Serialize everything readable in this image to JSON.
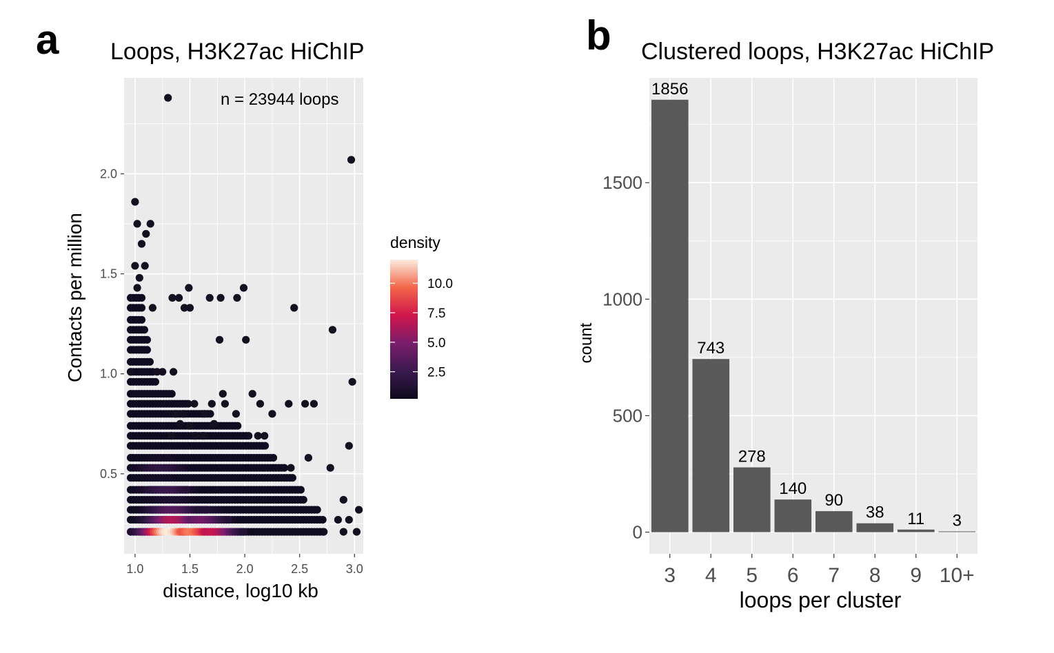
{
  "colors": {
    "panel_bg": "#ebebeb",
    "grid": "#ffffff",
    "point": "#14101f",
    "bar": "#595959",
    "density_low": "#0d0a1e",
    "density_mid": "#d1164b",
    "density_high": "#faebdd"
  },
  "chart_data": [
    {
      "type": "scatter",
      "panel_label": "a",
      "title": "Loops, H3K27ac HiChIP",
      "xlabel": "distance, log10 kb",
      "ylabel": "Contacts per million",
      "annotation": "n =  23944  loops",
      "xlim": [
        0.9,
        3.08
      ],
      "ylim": [
        0.1,
        2.48
      ],
      "x_ticks": [
        1.0,
        1.5,
        2.0,
        2.5,
        3.0
      ],
      "x_tick_labels": [
        "1.0",
        "1.5",
        "2.0",
        "2.5",
        "3.0"
      ],
      "y_ticks": [
        0.5,
        1.0,
        1.5,
        2.0
      ],
      "y_tick_labels": [
        "0.5",
        "1.0",
        "1.5",
        "2.0"
      ],
      "legend_title": "density",
      "legend_ticks": [
        2.5,
        5.0,
        7.5,
        10.0
      ],
      "legend_tick_labels": [
        "2.5",
        "5.0",
        "7.5",
        "10.0"
      ],
      "legend_range": [
        0.2,
        12.0
      ],
      "legend_placement": "right",
      "grid": true,
      "outlier_points": [
        [
          1.3,
          2.38
        ],
        [
          2.97,
          2.07
        ],
        [
          1.0,
          1.86
        ],
        [
          1.02,
          1.75
        ],
        [
          1.14,
          1.75
        ],
        [
          1.1,
          1.7
        ],
        [
          1.06,
          1.65
        ],
        [
          1.0,
          1.54
        ],
        [
          1.09,
          1.54
        ],
        [
          1.04,
          1.48
        ],
        [
          1.02,
          1.43
        ],
        [
          1.49,
          1.43
        ],
        [
          1.99,
          1.43
        ],
        [
          1.34,
          1.38
        ],
        [
          1.4,
          1.38
        ],
        [
          1.68,
          1.38
        ],
        [
          1.78,
          1.38
        ],
        [
          1.93,
          1.38
        ],
        [
          1.16,
          1.33
        ],
        [
          1.45,
          1.33
        ],
        [
          1.5,
          1.33
        ],
        [
          2.45,
          1.33
        ],
        [
          2.8,
          1.22
        ],
        [
          1.77,
          1.17
        ],
        [
          2.01,
          1.17
        ],
        [
          1.2,
          1.01
        ],
        [
          1.25,
          1.01
        ],
        [
          1.35,
          1.01
        ],
        [
          0.96,
          1.01
        ],
        [
          2.98,
          0.96
        ],
        [
          1.8,
          0.9
        ],
        [
          2.07,
          0.9
        ],
        [
          1.54,
          0.85
        ],
        [
          1.7,
          0.85
        ],
        [
          1.82,
          0.85
        ],
        [
          2.14,
          0.85
        ],
        [
          2.4,
          0.85
        ],
        [
          2.55,
          0.85
        ],
        [
          2.63,
          0.85
        ],
        [
          1.37,
          0.8
        ],
        [
          1.44,
          0.8
        ],
        [
          1.63,
          0.8
        ],
        [
          1.92,
          0.8
        ],
        [
          2.25,
          0.8
        ],
        [
          1.41,
          0.75
        ],
        [
          1.72,
          0.75
        ],
        [
          1.5,
          0.74
        ],
        [
          1.33,
          0.69
        ],
        [
          1.55,
          0.69
        ],
        [
          1.62,
          0.69
        ],
        [
          2.12,
          0.69
        ],
        [
          2.18,
          0.69
        ],
        [
          2.95,
          0.64
        ],
        [
          2.78,
          0.53
        ],
        [
          2.58,
          0.58
        ],
        [
          2.42,
          0.53
        ],
        [
          2.9,
          0.37
        ],
        [
          2.95,
          0.27
        ],
        [
          3.04,
          0.32
        ],
        [
          2.85,
          0.27
        ],
        [
          2.9,
          0.21
        ],
        [
          3.02,
          0.21
        ],
        [
          2.72,
          0.21
        ]
      ],
      "row_values": [
        0.21,
        0.27,
        0.32,
        0.37,
        0.42,
        0.48,
        0.53,
        0.58,
        0.64,
        0.69,
        0.74,
        0.8,
        0.85,
        0.9,
        0.96,
        1.01,
        1.06,
        1.12,
        1.17,
        1.22,
        1.27,
        1.33,
        1.38
      ],
      "row_x_max": [
        2.72,
        2.72,
        2.68,
        2.55,
        2.52,
        2.45,
        2.38,
        2.28,
        2.2,
        2.05,
        1.95,
        1.7,
        1.5,
        1.35,
        1.2,
        1.18,
        1.15,
        1.12,
        1.12,
        1.1,
        1.08,
        1.07,
        1.08
      ],
      "density_peaks": [
        {
          "x": 1.3,
          "y": 0.21,
          "d": 12.0
        },
        {
          "x": 1.5,
          "y": 0.21,
          "d": 10.0
        },
        {
          "x": 1.7,
          "y": 0.21,
          "d": 7.0
        },
        {
          "x": 1.35,
          "y": 0.27,
          "d": 6.5
        },
        {
          "x": 1.6,
          "y": 0.27,
          "d": 4.5
        },
        {
          "x": 1.35,
          "y": 0.32,
          "d": 3.5
        },
        {
          "x": 1.3,
          "y": 0.42,
          "d": 2.5
        },
        {
          "x": 1.25,
          "y": 0.53,
          "d": 2.0
        }
      ]
    },
    {
      "type": "bar",
      "panel_label": "b",
      "title": "Clustered loops, H3K27ac HiChIP",
      "xlabel": "loops per cluster",
      "ylabel": "count",
      "categories": [
        "3",
        "4",
        "5",
        "6",
        "7",
        "8",
        "9",
        "10+"
      ],
      "values": [
        1856,
        743,
        278,
        140,
        90,
        38,
        11,
        3
      ],
      "data_labels": [
        "1856",
        "743",
        "278",
        "140",
        "90",
        "38",
        "11",
        "3"
      ],
      "ylim": [
        -93,
        1950
      ],
      "y_ticks": [
        0,
        500,
        1000,
        1500
      ],
      "y_tick_labels": [
        "0",
        "500",
        "1000",
        "1500"
      ],
      "grid": true
    }
  ]
}
